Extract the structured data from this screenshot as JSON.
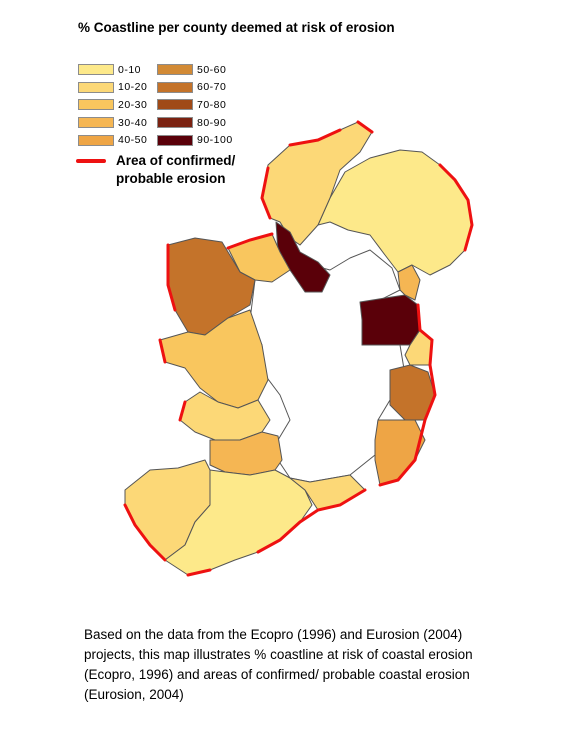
{
  "legend": {
    "title": "% Coastline per county deemed at risk of erosion",
    "classes": [
      {
        "label": "0-10",
        "color": "#fde98a"
      },
      {
        "label": "10-20",
        "color": "#fcd877"
      },
      {
        "label": "20-30",
        "color": "#f9c65e"
      },
      {
        "label": "30-40",
        "color": "#f5b653"
      },
      {
        "label": "40-50",
        "color": "#eea545"
      },
      {
        "label": "50-60",
        "color": "#d28a35"
      },
      {
        "label": "60-70",
        "color": "#c4732a"
      },
      {
        "label": "70-80",
        "color": "#a04a17"
      },
      {
        "label": "80-90",
        "color": "#7b2211"
      },
      {
        "label": "90-100",
        "color": "#5a0009"
      }
    ],
    "erosion_label": "Area of confirmed/ probable erosion",
    "erosion_color": "#ee1111"
  },
  "map": {
    "outline_color": "#555555",
    "regions": [
      {
        "name": "northern-ireland",
        "class": "0-10"
      },
      {
        "name": "donegal",
        "class": "10-20"
      },
      {
        "name": "mayo",
        "class": "60-70"
      },
      {
        "name": "galway",
        "class": "20-30"
      },
      {
        "name": "clare",
        "class": "10-20"
      },
      {
        "name": "kerry",
        "class": "10-20"
      },
      {
        "name": "cork",
        "class": "10-20"
      },
      {
        "name": "limerick",
        "class": "40-50"
      },
      {
        "name": "waterford",
        "class": "10-20"
      },
      {
        "name": "wexford",
        "class": "30-40"
      },
      {
        "name": "wicklow",
        "class": "60-70"
      },
      {
        "name": "dublin",
        "class": "90-100"
      },
      {
        "name": "leitrim",
        "class": "90-100"
      },
      {
        "name": "louth",
        "class": "30-40"
      },
      {
        "name": "meath-north",
        "class": "20-30"
      },
      {
        "name": "sligo",
        "class": "20-30"
      },
      {
        "name": "inland-counties",
        "class": "none"
      }
    ]
  },
  "caption": "Based on the data from the Ecopro (1996) and Eurosion (2004) projects, this map illustrates % coastline at risk of coastal erosion (Ecopro, 1996) and areas of confirmed/ probable coastal erosion (Eurosion, 2004)"
}
